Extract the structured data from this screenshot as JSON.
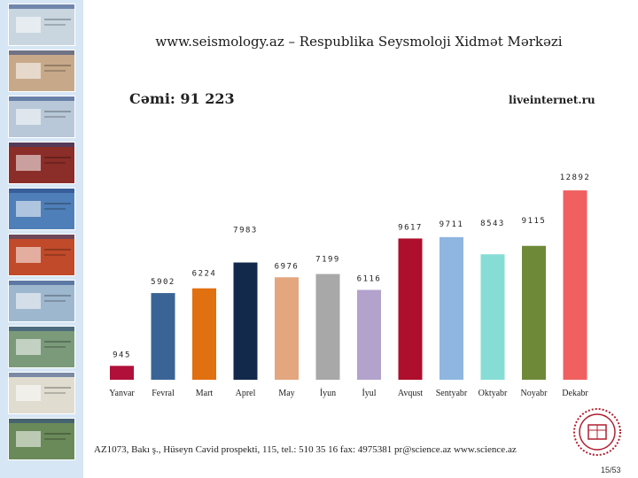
{
  "header": {
    "title": "www.seismology.az – Respublika Seysmoloji Xidmət Mərkəzi"
  },
  "summary": {
    "total_label": "Cəmi: 91 223",
    "source": "liveinternet.ru"
  },
  "footer": {
    "address": "AZ1073, Bakı ş., Hüseyn Cavid prospekti, 115, tel.: 510 35 16  fax: 4975381  pr@science.az  www.science.az",
    "page": "15/53"
  },
  "sidebar": {
    "thumbnails": [
      {
        "name": "website-screenshot-1",
        "color": "#c9d6e0"
      },
      {
        "name": "website-screenshot-2",
        "color": "#c7a98a"
      },
      {
        "name": "website-screenshot-3",
        "color": "#b8c8d8"
      },
      {
        "name": "website-screenshot-4",
        "color": "#8b2d28"
      },
      {
        "name": "website-screenshot-5",
        "color": "#4f7fb8"
      },
      {
        "name": "website-screenshot-6",
        "color": "#c04a2a"
      },
      {
        "name": "website-screenshot-7",
        "color": "#9db7cf"
      },
      {
        "name": "website-screenshot-8",
        "color": "#7a9a7a"
      },
      {
        "name": "website-screenshot-9",
        "color": "#e0dcd0"
      },
      {
        "name": "website-screenshot-10",
        "color": "#6a8a5a"
      }
    ]
  },
  "chart_data": {
    "type": "bar",
    "title": "www.seismology.az – Respublika Seysmoloji Xidmət Mərkəzi",
    "xlabel": "",
    "ylabel": "",
    "ylim": [
      0,
      13500
    ],
    "categories": [
      "Yanvar",
      "Fevral",
      "Mart",
      "Aprel",
      "May",
      "İyun",
      "İyul",
      "Avqust",
      "Sentyabr",
      "Oktyabr",
      "Noyabr",
      "Dekabr"
    ],
    "values": [
      945,
      5902,
      6224,
      7983,
      6976,
      7199,
      6116,
      9617,
      9711,
      8543,
      9115,
      12892
    ],
    "labels": [
      "945",
      "5902",
      "6224",
      "7983",
      "6976",
      "7199",
      "6116",
      "9617",
      "9711",
      "8543",
      "9115",
      "12892"
    ],
    "colors": [
      "#b0103a",
      "#3a6496",
      "#e07010",
      "#13294b",
      "#e3a67e",
      "#a8a8a8",
      "#b3a2cc",
      "#ad0f2c",
      "#8fb6e0",
      "#86ddd6",
      "#6e8a38",
      "#f06060"
    ],
    "grid": false,
    "legend": "none"
  }
}
